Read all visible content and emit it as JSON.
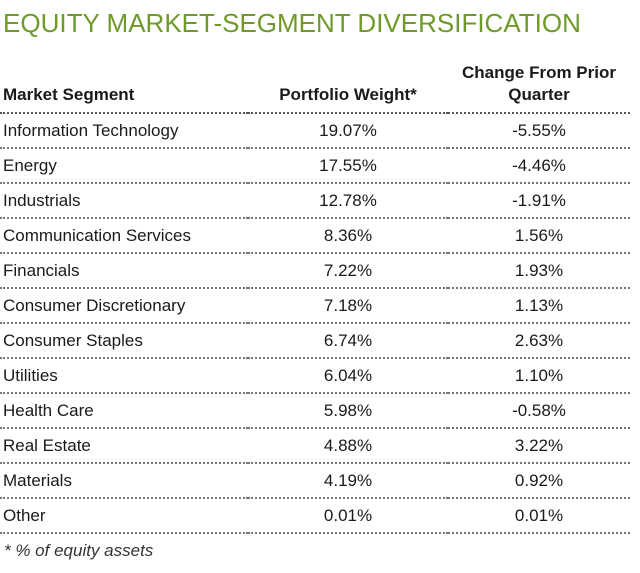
{
  "title": "EQUITY MARKET-SEGMENT DIVERSIFICATION",
  "table": {
    "headers": {
      "segment": "Market Segment",
      "weight": "Portfolio Weight*",
      "change_line1": "Change From Prior",
      "change_line2": "Quarter"
    },
    "rows": [
      {
        "segment": "Information Technology",
        "weight": "19.07%",
        "change": "-5.55%"
      },
      {
        "segment": "Energy",
        "weight": "17.55%",
        "change": "-4.46%"
      },
      {
        "segment": "Industrials",
        "weight": "12.78%",
        "change": "-1.91%"
      },
      {
        "segment": "Communication Services",
        "weight": "8.36%",
        "change": "1.56%"
      },
      {
        "segment": "Financials",
        "weight": "7.22%",
        "change": "1.93%"
      },
      {
        "segment": "Consumer Discretionary",
        "weight": "7.18%",
        "change": "1.13%"
      },
      {
        "segment": "Consumer Staples",
        "weight": "6.74%",
        "change": "2.63%"
      },
      {
        "segment": "Utilities",
        "weight": "6.04%",
        "change": "1.10%"
      },
      {
        "segment": "Health Care",
        "weight": "5.98%",
        "change": "-0.58%"
      },
      {
        "segment": "Real Estate",
        "weight": "4.88%",
        "change": "3.22%"
      },
      {
        "segment": "Materials",
        "weight": "4.19%",
        "change": "0.92%"
      },
      {
        "segment": "Other",
        "weight": "0.01%",
        "change": "0.01%"
      }
    ]
  },
  "footnote": "* % of equity assets",
  "colors": {
    "title": "#6f9a2a"
  }
}
